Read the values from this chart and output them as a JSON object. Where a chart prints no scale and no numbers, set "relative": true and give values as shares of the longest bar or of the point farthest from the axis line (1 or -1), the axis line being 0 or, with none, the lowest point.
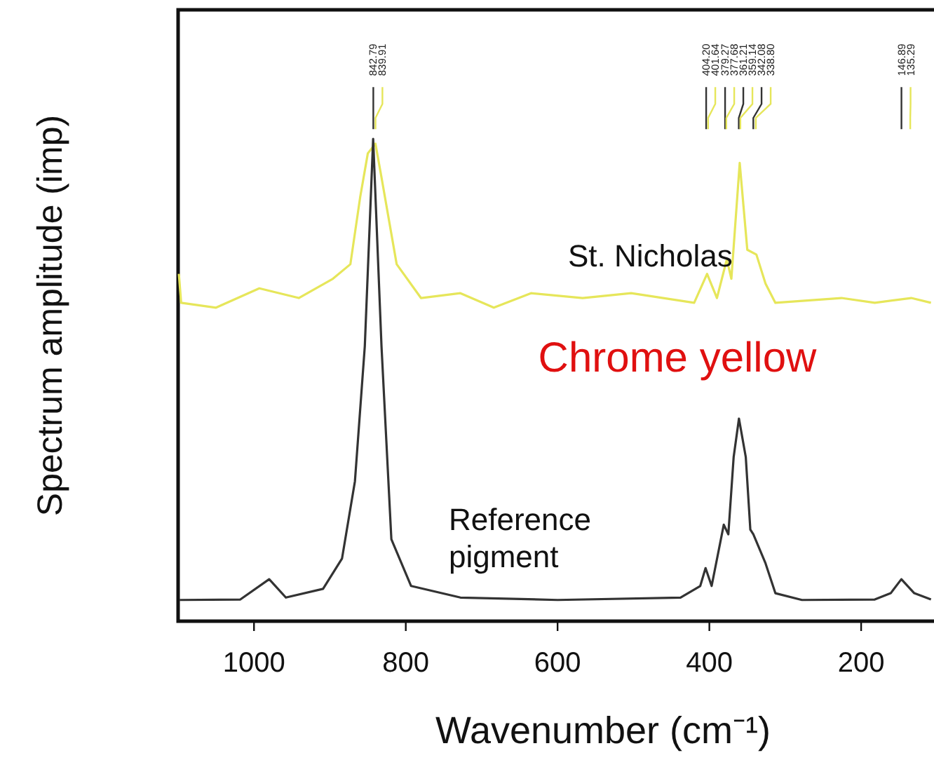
{
  "chart_data": {
    "type": "line",
    "relative": true,
    "xlabel": "Wavenumber (cm⁻¹)",
    "ylabel": "Spectrum amplitude (imp)",
    "xlim": [
      1100,
      104
    ],
    "xticks": [
      1000,
      800,
      600,
      400,
      200
    ],
    "grid": false,
    "marker": "none",
    "line_style": "solid",
    "annotations": [
      "Chrome yellow",
      "842.79",
      "839.91",
      "404.20",
      "401.64",
      "379.27",
      "377.68",
      "361.21",
      "359.14",
      "342.08",
      "338.80",
      "146.89",
      "135.29"
    ],
    "series": [
      {
        "name": "St. Nicholas",
        "color": "#e6e65a",
        "x": [
          1099,
          1096,
          1050,
          993,
          941,
          896,
          873,
          860,
          850,
          840,
          832,
          812,
          780,
          728,
          684,
          635,
          567,
          503,
          420,
          403,
          390,
          377,
          371,
          360,
          350,
          338,
          326,
          313,
          226,
          182,
          134,
          108
        ],
        "values": [
          0.72,
          0.66,
          0.65,
          0.69,
          0.67,
          0.71,
          0.74,
          0.88,
          0.97,
          0.99,
          0.92,
          0.74,
          0.67,
          0.68,
          0.65,
          0.68,
          0.67,
          0.68,
          0.66,
          0.72,
          0.67,
          0.75,
          0.71,
          0.95,
          0.77,
          0.76,
          0.7,
          0.66,
          0.67,
          0.66,
          0.67,
          0.66
        ]
      },
      {
        "name": "Reference pigment",
        "color": "#333333",
        "x": [
          1098,
          1018,
          980,
          958,
          909,
          884,
          867,
          854,
          843,
          832,
          819,
          793,
          728,
          600,
          438,
          412,
          405,
          397,
          381,
          375,
          368,
          361,
          352,
          346,
          342,
          326,
          313,
          278,
          182,
          161,
          147,
          130,
          108
        ],
        "values": [
          0.044,
          0.045,
          0.087,
          0.049,
          0.067,
          0.13,
          0.29,
          0.57,
          1.0,
          0.57,
          0.17,
          0.073,
          0.049,
          0.044,
          0.049,
          0.073,
          0.11,
          0.073,
          0.2,
          0.18,
          0.34,
          0.42,
          0.34,
          0.19,
          0.18,
          0.12,
          0.058,
          0.044,
          0.045,
          0.058,
          0.087,
          0.058,
          0.045
        ]
      }
    ]
  }
}
